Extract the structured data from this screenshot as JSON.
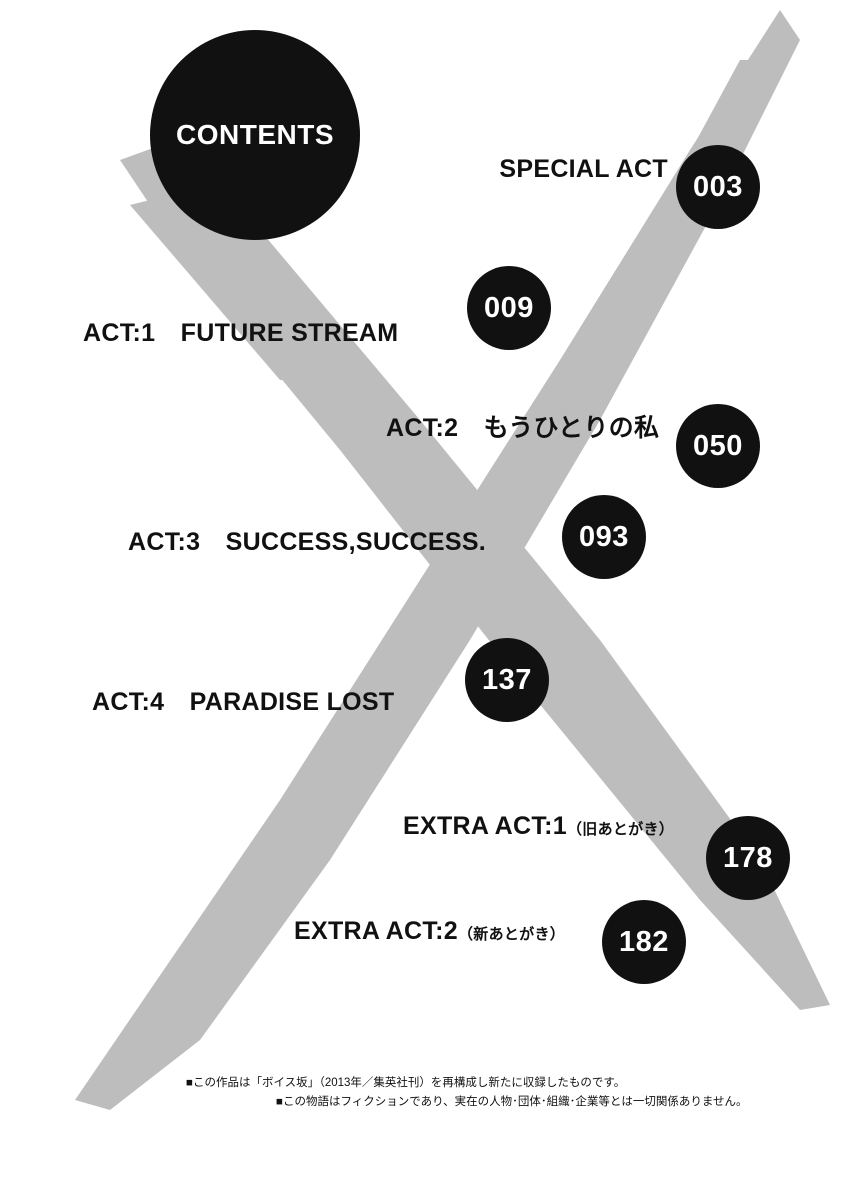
{
  "title": "CONTENTS",
  "entries": [
    {
      "label": "SPECIAL ACT",
      "sub": "",
      "page": "003"
    },
    {
      "label": "ACT:1　FUTURE STREAM",
      "sub": "",
      "page": "009"
    },
    {
      "label": "ACT:2　もうひとりの私",
      "sub": "",
      "page": "050"
    },
    {
      "label": "ACT:3　SUCCESS,SUCCESS.",
      "sub": "",
      "page": "093"
    },
    {
      "label": "ACT:4　PARADISE LOST",
      "sub": "",
      "page": "137"
    },
    {
      "label": "EXTRA ACT:1",
      "sub": "（旧あとがき）",
      "page": "178"
    },
    {
      "label": "EXTRA ACT:2",
      "sub": "（新あとがき）",
      "page": "182"
    }
  ],
  "notes": [
    "■この作品は「ボイス坂」（2013年／集英社刊）を再構成し新たに収録したものです。",
    "■この物語はフィクションであり、実在の人物･団体･組織･企業等とは一切関係ありません。"
  ],
  "colors": {
    "circle": "#111111",
    "brush": "#bdbdbd",
    "background": "#ffffff"
  }
}
